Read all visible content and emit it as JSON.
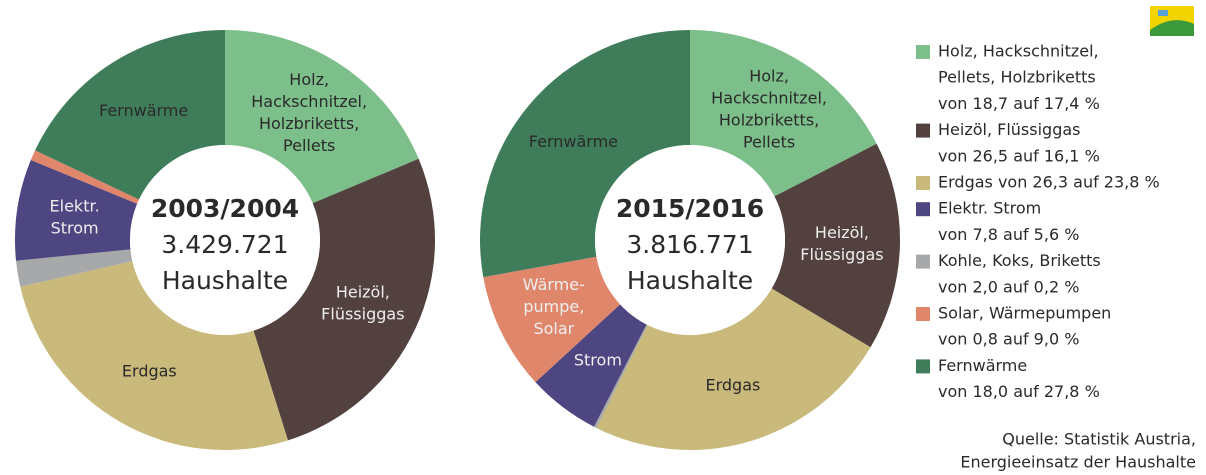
{
  "chart_data": [
    {
      "type": "pie",
      "title": "2003/2004",
      "center_lines": [
        "3.429.721",
        "Haushalte"
      ],
      "values": [
        18.7,
        26.5,
        26.3,
        2.0,
        7.8,
        0.8,
        18.0
      ],
      "colors": [
        "#7dbf8a",
        "#52413f",
        "#c9b97a",
        "#a6a8aa",
        "#4e4680",
        "#e0866a",
        "#3f7d5a"
      ],
      "categories": [
        [
          "Holz,",
          "Hackschnitzel,",
          "Holzbriketts,",
          "Pellets"
        ],
        [
          "Heizöl,",
          "Flüssiggas"
        ],
        [
          "Erdgas"
        ],
        null,
        [
          "Elektr.",
          "Strom"
        ],
        null,
        [
          "Fernwärme"
        ]
      ]
    },
    {
      "type": "pie",
      "title": "2015/2016",
      "center_lines": [
        "3.816.771",
        "Haushalte"
      ],
      "values": [
        17.4,
        16.1,
        23.8,
        0.2,
        5.6,
        9.0,
        27.8
      ],
      "colors": [
        "#7dbf8a",
        "#52413f",
        "#c9b97a",
        "#a6a8aa",
        "#4e4680",
        "#e0866a",
        "#3f7d5a"
      ],
      "categories": [
        [
          "Holz,",
          "Hackschnitzel,",
          "Holzbriketts,",
          "Pellets"
        ],
        [
          "Heizöl,",
          "Flüssiggas"
        ],
        [
          "Erdgas"
        ],
        null,
        [
          "Strom"
        ],
        [
          "Wärme-",
          "pumpe,",
          "Solar"
        ],
        [
          "Fernwärme"
        ]
      ]
    }
  ],
  "legend": [
    {
      "color": "#7dbf8a",
      "lines": [
        "Holz, Hackschnitzel,",
        "Pellets, Holzbriketts",
        "von 18,7 auf 17,4 %"
      ]
    },
    {
      "color": "#52413f",
      "lines": [
        "Heizöl, Flüssiggas",
        "von 26,5 auf 16,1 %"
      ]
    },
    {
      "color": "#c9b97a",
      "lines": [
        "Erdgas von 26,3 auf 23,8 %"
      ]
    },
    {
      "color": "#4e4680",
      "lines": [
        "Elektr. Strom",
        "von 7,8 auf 5,6 %"
      ]
    },
    {
      "color": "#a6a8aa",
      "lines": [
        "Kohle, Koks, Briketts",
        "von 2,0 auf 0,2 %"
      ]
    },
    {
      "color": "#e0866a",
      "lines": [
        "Solar, Wärmepumpen",
        "von 0,8 auf 9,0 %"
      ]
    },
    {
      "color": "#3f7d5a",
      "lines": [
        "Fernwärme",
        "von 18,0 auf 27,8 %"
      ]
    }
  ],
  "source": [
    "Quelle: Statistik Austria,",
    "Energieeinsatz der Haushalte"
  ]
}
